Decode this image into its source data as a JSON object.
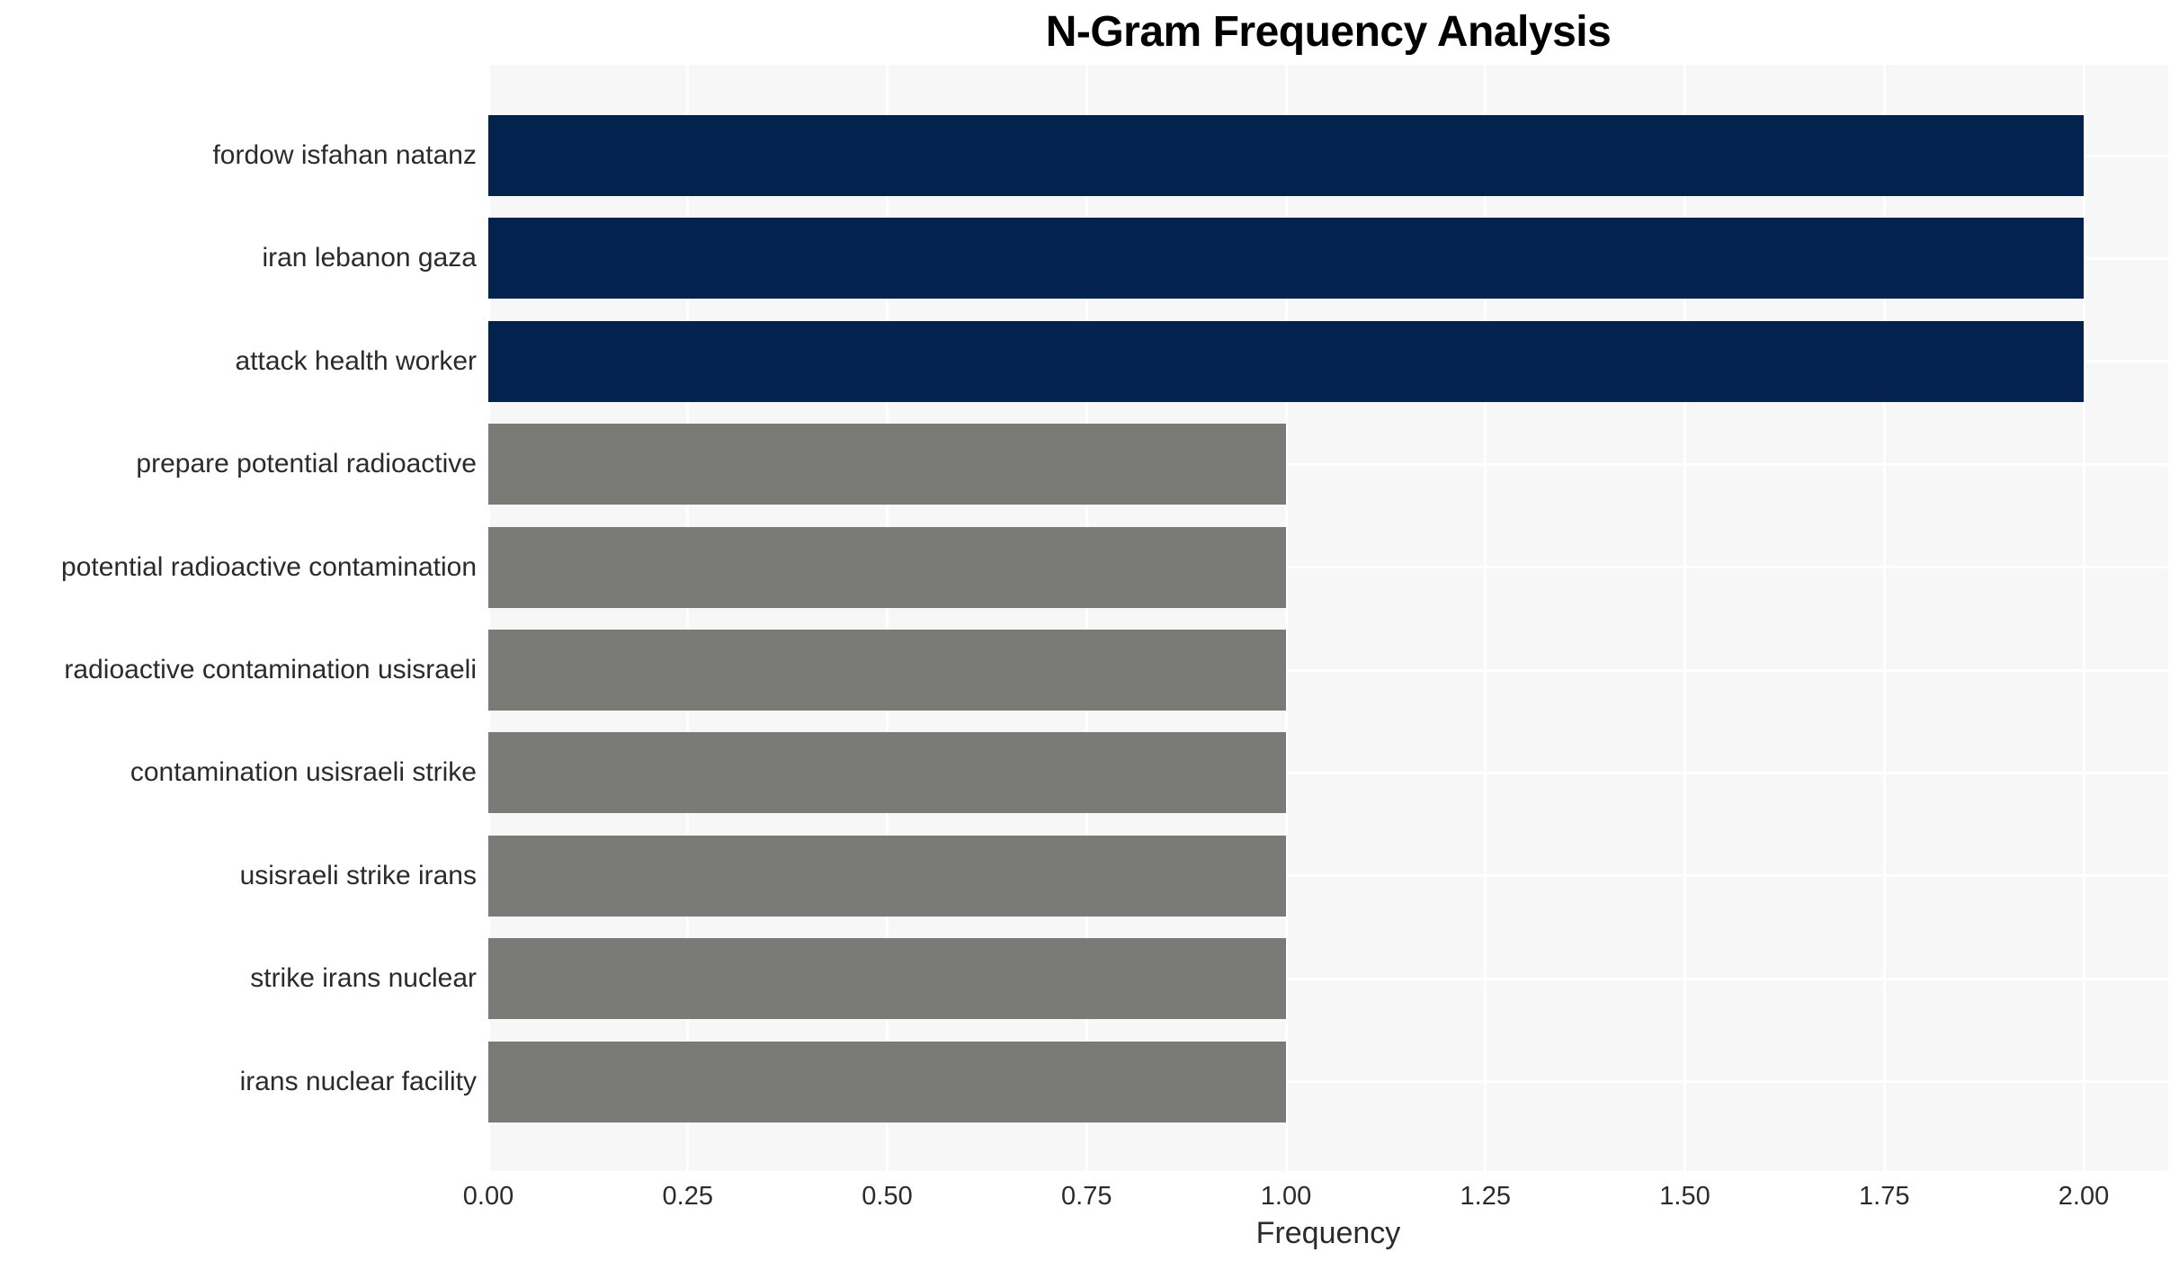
{
  "chart_data": {
    "type": "bar",
    "orientation": "horizontal",
    "title": "N-Gram Frequency Analysis",
    "xlabel": "Frequency",
    "ylabel": "",
    "categories": [
      "fordow isfahan natanz",
      "iran lebanon gaza",
      "attack health worker",
      "prepare potential radioactive",
      "potential radioactive contamination",
      "radioactive contamination usisraeli",
      "contamination usisraeli strike",
      "usisraeli strike irans",
      "strike irans nuclear",
      "irans nuclear facility"
    ],
    "values": [
      2,
      2,
      2,
      1,
      1,
      1,
      1,
      1,
      1,
      1
    ],
    "bar_colors": [
      "#03224e",
      "#03224e",
      "#03224e",
      "#7a7a77",
      "#7a7a77",
      "#7a7a77",
      "#7a7a77",
      "#7a7a77",
      "#7a7a77",
      "#7a7a77"
    ],
    "xlim": [
      0,
      2.0
    ],
    "xticks": [
      "0.00",
      "0.25",
      "0.50",
      "0.75",
      "1.00",
      "1.25",
      "1.50",
      "1.75",
      "2.00"
    ],
    "xtick_values": [
      0,
      0.25,
      0.5,
      0.75,
      1.0,
      1.25,
      1.5,
      1.75,
      2.0
    ],
    "grid": "white gridlines on light-gray panel, vertical at ticks, horizontal at category centers",
    "legend": "none",
    "colors": {
      "high_freq_bar": "#03224e",
      "low_freq_bar": "#7a7a77",
      "panel_background": "#f7f7f7",
      "gridline": "#ffffff",
      "title_text": "#000000",
      "axis_text": "#2b2b2b",
      "figure_background": "#ffffff"
    }
  }
}
